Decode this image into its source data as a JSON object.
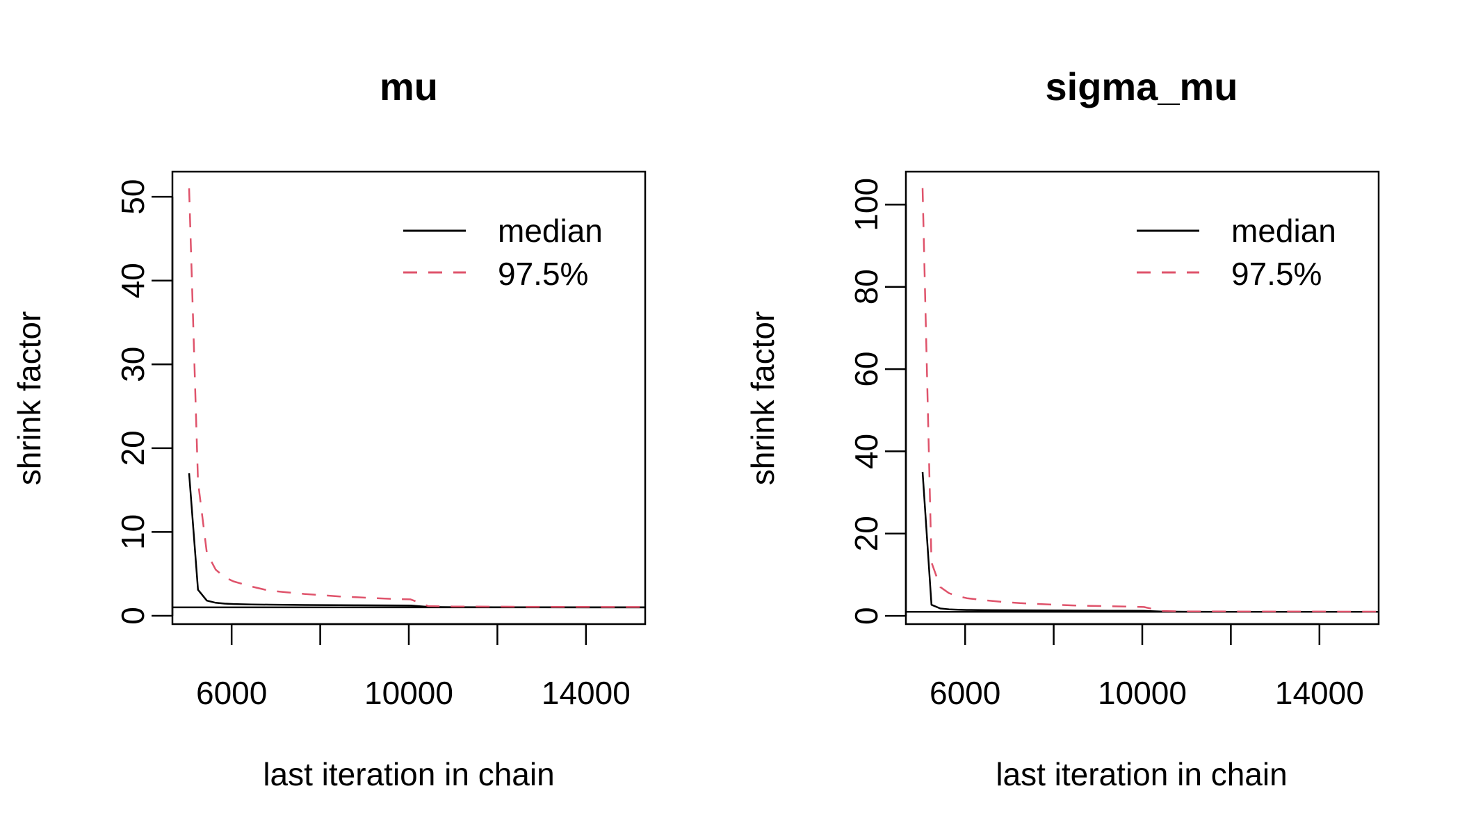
{
  "chart_data": [
    {
      "type": "line",
      "title": "mu",
      "xlabel": "last iteration in chain",
      "ylabel": "shrink factor",
      "xlim": [
        4663,
        15337
      ],
      "ylim": [
        -1,
        53
      ],
      "x_ticks": [
        6000,
        8000,
        10000,
        12000,
        14000
      ],
      "x_tick_labels": [
        "6000",
        "",
        "10000",
        "",
        "14000"
      ],
      "y_ticks": [
        0,
        10,
        20,
        30,
        40,
        50
      ],
      "y_tick_labels": [
        "0",
        "10",
        "20",
        "30",
        "40",
        "50"
      ],
      "reference_line": 1,
      "grid": false,
      "legend": {
        "position": "top-right",
        "entries": [
          "median",
          "97.5%"
        ]
      },
      "series": [
        {
          "name": "median",
          "color": "#000000",
          "dash": "solid",
          "x": [
            5040,
            5240,
            5440,
            5640,
            5840,
            6040,
            6440,
            6840,
            7240,
            7640,
            8040,
            8440,
            8840,
            9240,
            9640,
            10040,
            10440,
            11000,
            12000,
            13000,
            14000,
            15000,
            15337
          ],
          "y": [
            17,
            3.1,
            1.8,
            1.55,
            1.45,
            1.4,
            1.35,
            1.32,
            1.3,
            1.28,
            1.27,
            1.26,
            1.25,
            1.24,
            1.23,
            1.22,
            1.05,
            1.02,
            1.01,
            1.01,
            1.0,
            1.0,
            1.0
          ]
        },
        {
          "name": "97.5%",
          "color": "#DF536B",
          "dash": "dashed",
          "x": [
            5040,
            5240,
            5440,
            5640,
            5840,
            6040,
            6440,
            6840,
            7240,
            7640,
            8040,
            8440,
            8840,
            9240,
            9640,
            10040,
            10440,
            11000,
            12000,
            13000,
            14000,
            15000,
            15337
          ],
          "y": [
            51,
            16,
            7.5,
            5.5,
            4.6,
            4.1,
            3.5,
            3.0,
            2.8,
            2.6,
            2.45,
            2.3,
            2.2,
            2.1,
            2.0,
            1.95,
            1.15,
            1.1,
            1.08,
            1.06,
            1.05,
            1.04,
            1.04
          ]
        }
      ]
    },
    {
      "type": "line",
      "title": "sigma_mu",
      "xlabel": "last iteration in chain",
      "ylabel": "shrink factor",
      "xlim": [
        4663,
        15337
      ],
      "ylim": [
        -2,
        108
      ],
      "x_ticks": [
        6000,
        8000,
        10000,
        12000,
        14000
      ],
      "x_tick_labels": [
        "6000",
        "",
        "10000",
        "",
        "14000"
      ],
      "y_ticks": [
        0,
        20,
        40,
        60,
        80,
        100
      ],
      "y_tick_labels": [
        "0",
        "20",
        "40",
        "60",
        "80",
        "100"
      ],
      "reference_line": 1,
      "grid": false,
      "legend": {
        "position": "top-right",
        "entries": [
          "median",
          "97.5%"
        ]
      },
      "series": [
        {
          "name": "median",
          "color": "#000000",
          "dash": "solid",
          "x": [
            5040,
            5240,
            5440,
            5640,
            5840,
            6040,
            6440,
            6840,
            7240,
            7640,
            8040,
            8440,
            8840,
            9240,
            9640,
            10040,
            10440,
            11000,
            12000,
            13000,
            14000,
            15000,
            15337
          ],
          "y": [
            35,
            2.7,
            1.8,
            1.6,
            1.5,
            1.45,
            1.4,
            1.38,
            1.36,
            1.34,
            1.32,
            1.3,
            1.28,
            1.26,
            1.24,
            1.22,
            1.05,
            1.02,
            1.01,
            1.01,
            1.0,
            1.0,
            1.0
          ]
        },
        {
          "name": "97.5%",
          "color": "#DF536B",
          "dash": "dashed",
          "x": [
            5040,
            5240,
            5440,
            5640,
            5840,
            6040,
            6440,
            6840,
            7240,
            7640,
            8040,
            8440,
            8840,
            9240,
            9640,
            10040,
            10440,
            11000,
            12000,
            13000,
            14000,
            15000,
            15337
          ],
          "y": [
            104,
            13,
            7,
            5.5,
            4.8,
            4.3,
            3.8,
            3.4,
            3.1,
            2.9,
            2.7,
            2.55,
            2.45,
            2.35,
            2.25,
            2.15,
            1.2,
            1.1,
            1.08,
            1.06,
            1.05,
            1.04,
            1.04
          ]
        }
      ]
    }
  ]
}
